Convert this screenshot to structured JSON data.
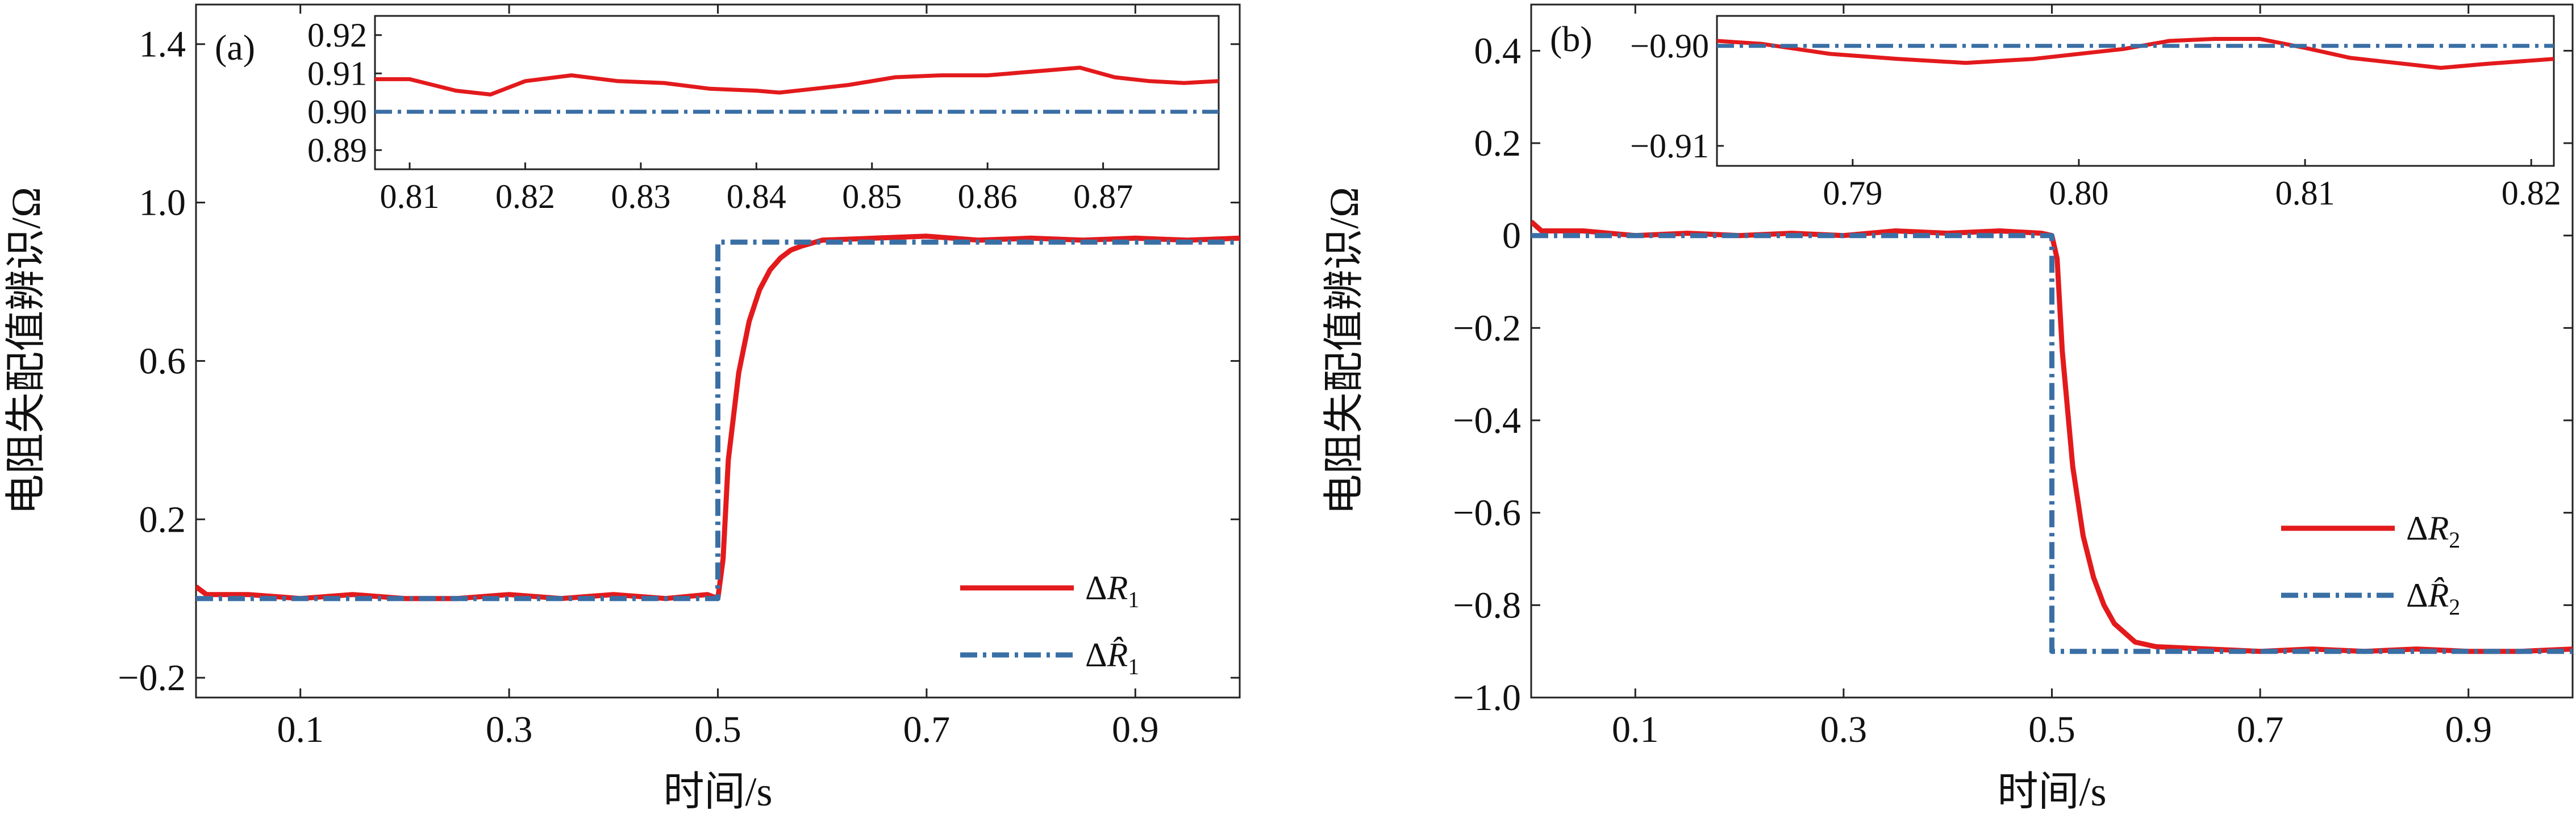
{
  "chart_data": [
    {
      "type": "line",
      "panel_label": "(a)",
      "xlabel": "时间/s",
      "ylabel": "电阻失配值辨识/Ω",
      "xlim": [
        0.0,
        1.0
      ],
      "ylim": [
        -0.25,
        1.5
      ],
      "xticks": [
        0.1,
        0.3,
        0.5,
        0.7,
        0.9
      ],
      "xtick_labels": [
        "0.1",
        "0.3",
        "0.5",
        "0.7",
        "0.9"
      ],
      "yticks": [
        -0.2,
        0.2,
        0.6,
        1.0,
        1.4
      ],
      "ytick_labels": [
        "−0.2",
        "0.2",
        "0.6",
        "1.0",
        "1.4"
      ],
      "legend": {
        "position": "bottom-right",
        "entries": [
          "ΔR₁",
          "ΔR̂₁"
        ]
      },
      "series": [
        {
          "name": "ΔR₁",
          "style": "solid",
          "color": "#e31a1c",
          "x": [
            0.0,
            0.01,
            0.05,
            0.1,
            0.15,
            0.2,
            0.25,
            0.3,
            0.35,
            0.4,
            0.45,
            0.49,
            0.5,
            0.505,
            0.51,
            0.52,
            0.53,
            0.54,
            0.55,
            0.56,
            0.57,
            0.58,
            0.6,
            0.65,
            0.7,
            0.75,
            0.8,
            0.85,
            0.9,
            0.95,
            1.0
          ],
          "y": [
            0.03,
            0.01,
            0.01,
            0.0,
            0.01,
            0.0,
            0.0,
            0.01,
            0.0,
            0.01,
            0.0,
            0.01,
            0.0,
            0.1,
            0.35,
            0.57,
            0.7,
            0.78,
            0.83,
            0.86,
            0.88,
            0.89,
            0.905,
            0.91,
            0.915,
            0.905,
            0.91,
            0.905,
            0.91,
            0.905,
            0.91
          ]
        },
        {
          "name": "ΔR̂₁",
          "style": "dashdot",
          "color": "#3a6fa5",
          "x": [
            0.0,
            0.5,
            0.5,
            1.0
          ],
          "y": [
            0.0,
            0.0,
            0.9,
            0.9
          ]
        }
      ],
      "inset": {
        "xlim": [
          0.807,
          0.88
        ],
        "ylim": [
          0.885,
          0.925
        ],
        "xticks": [
          0.81,
          0.82,
          0.83,
          0.84,
          0.85,
          0.86,
          0.87
        ],
        "xtick_labels": [
          "0.81",
          "0.82",
          "0.83",
          "0.84",
          "0.85",
          "0.86",
          "0.87"
        ],
        "yticks": [
          0.89,
          0.9,
          0.91,
          0.92
        ],
        "ytick_labels": [
          "0.89",
          "0.90",
          "0.91",
          "0.92"
        ],
        "series": [
          {
            "name": "ΔR₁",
            "style": "solid",
            "color": "#e31a1c",
            "x": [
              0.807,
              0.81,
              0.814,
              0.817,
              0.82,
              0.824,
              0.828,
              0.832,
              0.836,
              0.84,
              0.842,
              0.845,
              0.848,
              0.852,
              0.856,
              0.86,
              0.864,
              0.868,
              0.871,
              0.874,
              0.877,
              0.88
            ],
            "y": [
              0.9085,
              0.9085,
              0.9055,
              0.9045,
              0.908,
              0.9095,
              0.908,
              0.9075,
              0.906,
              0.9055,
              0.905,
              0.906,
              0.907,
              0.909,
              0.9095,
              0.9095,
              0.9105,
              0.9115,
              0.909,
              0.908,
              0.9075,
              0.908
            ]
          },
          {
            "name": "ΔR̂₁",
            "style": "dashdot",
            "color": "#3a6fa5",
            "x": [
              0.807,
              0.88
            ],
            "y": [
              0.9,
              0.9
            ]
          }
        ]
      }
    },
    {
      "type": "line",
      "panel_label": "(b)",
      "xlabel": "时间/s",
      "ylabel": "电阻失配值辨识/Ω",
      "xlim": [
        0.0,
        1.0
      ],
      "ylim": [
        -1.0,
        0.5
      ],
      "xticks": [
        0.1,
        0.3,
        0.5,
        0.7,
        0.9
      ],
      "xtick_labels": [
        "0.1",
        "0.3",
        "0.5",
        "0.7",
        "0.9"
      ],
      "yticks": [
        -1.0,
        -0.8,
        -0.6,
        -0.4,
        -0.2,
        0.0,
        0.2,
        0.4
      ],
      "ytick_labels": [
        "−1.0",
        "−0.8",
        "−0.6",
        "−0.4",
        "−0.2",
        "0",
        "0.2",
        "0.4"
      ],
      "legend": {
        "position": "right",
        "entries": [
          "ΔR₂",
          "ΔR̂₂"
        ]
      },
      "series": [
        {
          "name": "ΔR₂",
          "style": "solid",
          "color": "#e31a1c",
          "x": [
            0.0,
            0.01,
            0.05,
            0.1,
            0.15,
            0.2,
            0.25,
            0.3,
            0.35,
            0.4,
            0.45,
            0.49,
            0.5,
            0.505,
            0.51,
            0.52,
            0.53,
            0.54,
            0.55,
            0.56,
            0.57,
            0.58,
            0.6,
            0.65,
            0.7,
            0.75,
            0.8,
            0.85,
            0.9,
            0.95,
            1.0
          ],
          "y": [
            0.03,
            0.01,
            0.01,
            0.0,
            0.005,
            0.0,
            0.005,
            0.0,
            0.01,
            0.005,
            0.01,
            0.005,
            0.0,
            -0.05,
            -0.25,
            -0.5,
            -0.65,
            -0.74,
            -0.8,
            -0.84,
            -0.86,
            -0.88,
            -0.89,
            -0.895,
            -0.9,
            -0.895,
            -0.9,
            -0.895,
            -0.9,
            -0.9,
            -0.895
          ]
        },
        {
          "name": "ΔR̂₂",
          "style": "dashdot",
          "color": "#3a6fa5",
          "x": [
            0.0,
            0.5,
            0.5,
            1.0
          ],
          "y": [
            0.0,
            0.0,
            -0.9,
            -0.9
          ]
        }
      ],
      "inset": {
        "xlim": [
          0.784,
          0.821
        ],
        "ylim": [
          -0.912,
          -0.897
        ],
        "xticks": [
          0.79,
          0.8,
          0.81,
          0.82
        ],
        "xtick_labels": [
          "0.79",
          "0.80",
          "0.81",
          "0.82"
        ],
        "yticks": [
          -0.91,
          -0.9
        ],
        "ytick_labels": [
          "−0.91",
          "−0.90"
        ],
        "series": [
          {
            "name": "ΔR₂",
            "style": "solid",
            "color": "#e31a1c",
            "x": [
              0.784,
              0.786,
              0.789,
              0.792,
              0.795,
              0.798,
              0.8,
              0.802,
              0.804,
              0.806,
              0.808,
              0.81,
              0.812,
              0.814,
              0.816,
              0.818,
              0.821
            ],
            "y": [
              -0.8995,
              -0.8998,
              -0.9008,
              -0.9013,
              -0.9017,
              -0.9013,
              -0.9008,
              -0.9003,
              -0.8995,
              -0.8993,
              -0.8993,
              -0.9002,
              -0.9012,
              -0.9017,
              -0.9022,
              -0.9018,
              -0.9013
            ]
          },
          {
            "name": "ΔR̂₂",
            "style": "dashdot",
            "color": "#3a6fa5",
            "x": [
              0.784,
              0.821
            ],
            "y": [
              -0.9,
              -0.9
            ]
          }
        ]
      }
    }
  ]
}
